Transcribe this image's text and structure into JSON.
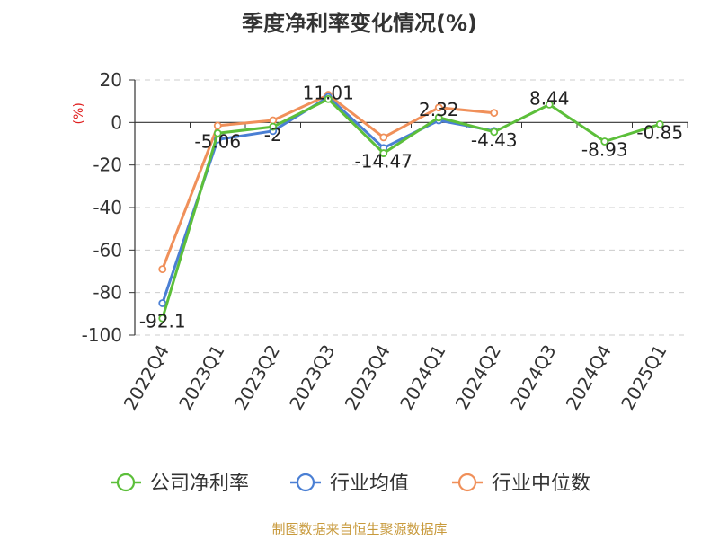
{
  "chart_data": {
    "type": "line",
    "title": "季度净利率变化情况(%)",
    "ylabel": "(%)",
    "ylim": [
      -100,
      20
    ],
    "yticks": [
      20,
      0,
      -20,
      -40,
      -60,
      -80,
      -100
    ],
    "grid": true,
    "legend_position": "bottom",
    "categories": [
      "2022Q4",
      "2023Q1",
      "2023Q2",
      "2023Q3",
      "2023Q4",
      "2024Q1",
      "2024Q2",
      "2024Q3",
      "2024Q4",
      "2025Q1"
    ],
    "series": [
      {
        "name": "公司净利率",
        "color": "#5cbf3a",
        "values": [
          -92.1,
          -5.06,
          -2,
          11.01,
          -14.47,
          2.32,
          -4.43,
          8.44,
          -8.93,
          -0.85
        ],
        "labels": [
          "-92.1",
          "-5.06",
          "-2",
          "11.01",
          "-14.47",
          "2.32",
          "-4.43",
          "8.44",
          "-8.93",
          "-0.85"
        ]
      },
      {
        "name": "行业均值",
        "color": "#4a7fd4",
        "values": [
          -85,
          -8,
          -4,
          12,
          -12,
          1,
          -4,
          null,
          null,
          null
        ]
      },
      {
        "name": "行业中位数",
        "color": "#f0905a",
        "values": [
          -69,
          -1.5,
          1,
          13,
          -7,
          7,
          4.5,
          null,
          null,
          null
        ]
      }
    ]
  },
  "footer": {
    "source": "制图数据来自恒生聚源数据库",
    "source_color": "#c89a3c"
  }
}
